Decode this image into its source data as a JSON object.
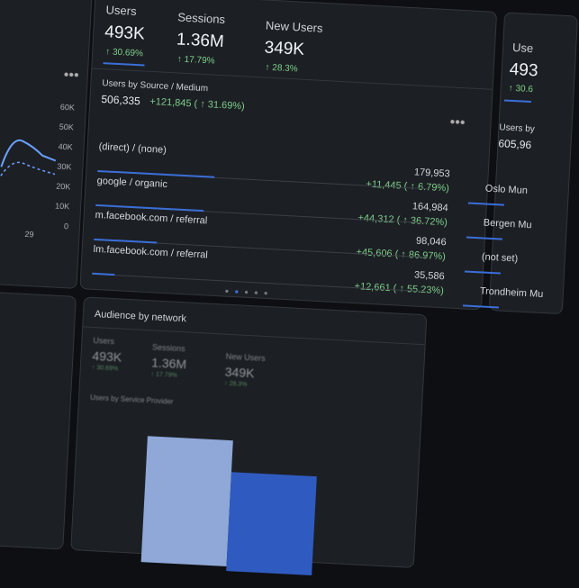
{
  "left_card": {
    "yticks": [
      "60K",
      "50K",
      "40K",
      "30K",
      "20K",
      "10K",
      "0"
    ],
    "xtick": "29"
  },
  "main_card": {
    "metrics": [
      {
        "label": "Users",
        "value": "493K",
        "change": "↑ 30.69%"
      },
      {
        "label": "Sessions",
        "value": "1.36M",
        "change": "↑ 17.79%"
      },
      {
        "label": "New Users",
        "value": "349K",
        "change": "↑ 28.3%"
      }
    ],
    "panel_title": "Users by Source / Medium",
    "total": "506,335",
    "total_change": "+121,845 ( ↑ 31.69%)",
    "rows": [
      {
        "label": "(direct) / (none)",
        "value": "179,953",
        "change": "+11,445 ( ↑ 6.79%)"
      },
      {
        "label": "google / organic",
        "value": "164,984",
        "change": "+44,312 ( ↑ 36.72%)"
      },
      {
        "label": "m.facebook.com / referral",
        "value": "98,046",
        "change": "+45,606 ( ↑ 86.97%)"
      },
      {
        "label": "lm.facebook.com / referral",
        "value": "35,586",
        "change": "+12,661 ( ↑ 55.23%)"
      }
    ]
  },
  "right_card": {
    "metric_label": "Use",
    "metric_value": "493",
    "metric_change": "↑ 30.6",
    "panel_title": "Users by",
    "total": "605,96",
    "rows": [
      "Oslo Mun",
      "Bergen Mu",
      "(not set)",
      "Trondheim Mu"
    ]
  },
  "bottom_card": {
    "title": "Audience by network",
    "metrics": [
      {
        "label": "Users",
        "value": "493K",
        "change": "↑ 30.69%"
      },
      {
        "label": "Sessions",
        "value": "1.36M",
        "change": "↑ 17.79%"
      },
      {
        "label": "New Users",
        "value": "349K",
        "change": "↑ 28.3%"
      }
    ],
    "panel_title": "Users by Service Provider"
  }
}
